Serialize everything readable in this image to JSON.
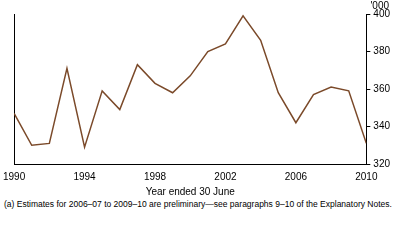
{
  "chart_data": {
    "type": "line",
    "x_label": "Year ended 30 June",
    "y_label": "'000",
    "footnote": "(a) Estimates for 2006–07 to 2009–10 are preliminary—see paragraphs 9–10 of the Explanatory Notes.",
    "x": [
      1990,
      1991,
      1992,
      1993,
      1994,
      1995,
      1996,
      1997,
      1998,
      1999,
      2000,
      2001,
      2002,
      2003,
      2004,
      2005,
      2006,
      2007,
      2008,
      2009,
      2010
    ],
    "values": [
      347,
      330,
      331,
      371,
      329,
      359,
      349,
      373,
      363,
      358,
      367,
      380,
      384,
      399,
      386,
      358,
      342,
      357,
      361,
      359,
      331
    ],
    "color": "#7b4a2a",
    "xlim": [
      1990,
      2010
    ],
    "xticks": [
      1990,
      1994,
      1998,
      2002,
      2006,
      2010
    ],
    "ylim": [
      320,
      400
    ],
    "yticks": [
      320,
      340,
      360,
      380,
      400
    ],
    "grid": false
  }
}
